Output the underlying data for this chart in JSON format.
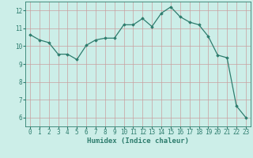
{
  "x": [
    0,
    1,
    2,
    3,
    4,
    5,
    6,
    7,
    8,
    9,
    10,
    11,
    12,
    13,
    14,
    15,
    16,
    17,
    18,
    19,
    20,
    21,
    22,
    23
  ],
  "y": [
    10.65,
    10.35,
    10.2,
    9.55,
    9.55,
    9.25,
    10.05,
    10.35,
    10.45,
    10.45,
    11.2,
    11.2,
    11.55,
    11.1,
    11.85,
    12.2,
    11.65,
    11.35,
    11.2,
    10.55,
    9.5,
    9.35,
    6.65,
    6.0
  ],
  "xlabel": "Humidex (Indice chaleur)",
  "ylim": [
    5.5,
    12.5
  ],
  "xlim": [
    -0.5,
    23.5
  ],
  "yticks": [
    6,
    7,
    8,
    9,
    10,
    11,
    12
  ],
  "xticks": [
    0,
    1,
    2,
    3,
    4,
    5,
    6,
    7,
    8,
    9,
    10,
    11,
    12,
    13,
    14,
    15,
    16,
    17,
    18,
    19,
    20,
    21,
    22,
    23
  ],
  "line_color": "#2e7d6e",
  "marker": "D",
  "marker_size": 1.8,
  "bg_color": "#cceee8",
  "grid_color": "#c8a0a0",
  "axis_color": "#2e7d6e",
  "tick_color": "#2e7d6e",
  "xlabel_color": "#2e7d6e",
  "xlabel_fontsize": 6.5,
  "tick_fontsize": 5.5,
  "linewidth": 0.9
}
